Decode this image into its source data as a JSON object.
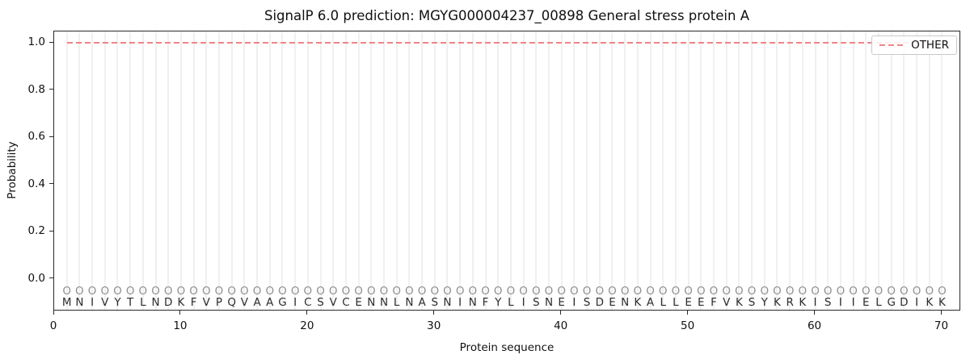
{
  "chart_data": {
    "type": "line",
    "title": "SignalP 6.0 prediction: MGYG000004237_00898 General stress protein A",
    "xlabel": "Protein sequence",
    "ylabel": "Probability",
    "legend_position": "upper-right",
    "grid": "vertical gridline at every residue position",
    "xlim": [
      0,
      71.5
    ],
    "ylim": [
      -0.137,
      1.048
    ],
    "x_ticks": [
      0,
      10,
      20,
      30,
      40,
      50,
      60,
      70
    ],
    "y_ticks": [
      "0.0",
      "0.2",
      "0.4",
      "0.6",
      "0.8",
      "1.0"
    ],
    "sequence": "MNIVYTLNDKFVPQVAAGICSVCENNLNASNINFYLISNEISDENKALLEEFVKSYKRKISIIELGDIKK",
    "sequence_length": 70,
    "per_residue_prediction": "OOOOOOOOOOOOOOOOOOOOOOOOOOOOOOOOOOOOOOOOOOOOOOOOOOOOOOOOOOOOOOOOOOOOOO",
    "series": [
      {
        "name": "OTHER",
        "style": "dashed",
        "color": "#f08484",
        "x": [
          1,
          2,
          3,
          4,
          5,
          6,
          7,
          8,
          9,
          10,
          11,
          12,
          13,
          14,
          15,
          16,
          17,
          18,
          19,
          20,
          21,
          22,
          23,
          24,
          25,
          26,
          27,
          28,
          29,
          30,
          31,
          32,
          33,
          34,
          35,
          36,
          37,
          38,
          39,
          40,
          41,
          42,
          43,
          44,
          45,
          46,
          47,
          48,
          49,
          50,
          51,
          52,
          53,
          54,
          55,
          56,
          57,
          58,
          59,
          60,
          61,
          62,
          63,
          64,
          65,
          66,
          67,
          68,
          69,
          70
        ],
        "y": [
          1.0,
          1.0,
          1.0,
          1.0,
          1.0,
          1.0,
          1.0,
          1.0,
          1.0,
          1.0,
          1.0,
          1.0,
          1.0,
          1.0,
          1.0,
          1.0,
          1.0,
          1.0,
          1.0,
          1.0,
          1.0,
          1.0,
          1.0,
          1.0,
          1.0,
          1.0,
          1.0,
          1.0,
          1.0,
          1.0,
          1.0,
          1.0,
          1.0,
          1.0,
          1.0,
          1.0,
          1.0,
          1.0,
          1.0,
          1.0,
          1.0,
          1.0,
          1.0,
          1.0,
          1.0,
          1.0,
          1.0,
          1.0,
          1.0,
          1.0,
          1.0,
          1.0,
          1.0,
          1.0,
          1.0,
          1.0,
          1.0,
          1.0,
          1.0,
          1.0,
          1.0,
          1.0,
          1.0,
          1.0,
          1.0,
          1.0,
          1.0,
          1.0,
          1.0,
          1.0
        ]
      }
    ],
    "colors": {
      "other_line": "#f08484",
      "grid": "#f0f0f0",
      "residue_marker": "#8f8f8f",
      "residue_letter": "#2d2d2d",
      "axis": "#2a2a2a",
      "background": "#ffffff"
    }
  }
}
